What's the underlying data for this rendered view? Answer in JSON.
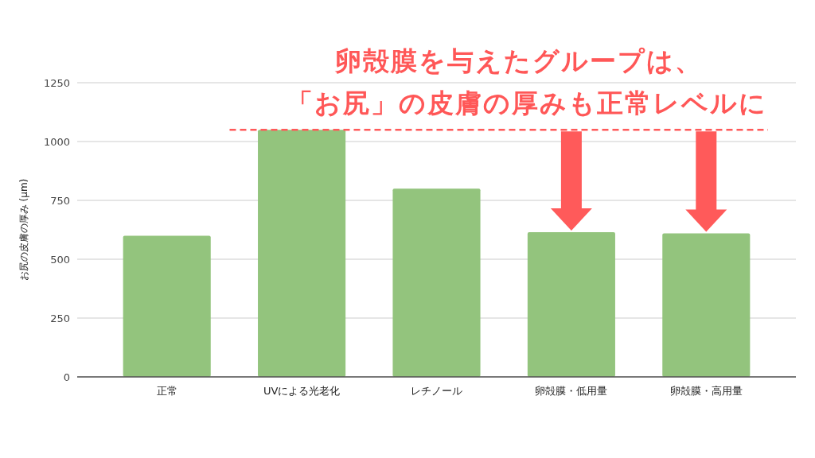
{
  "chart_data": {
    "type": "bar",
    "title": "卵殻膜を与えたグループは、",
    "subtitle": "「お尻」の皮膚の厚みも正常レベルに",
    "ylabel": "お尻の皮膚の厚み (μm)",
    "categories": [
      "正常",
      "UVによる光老化",
      "レチノール",
      "卵殻膜・低用量",
      "卵殻膜・高用量"
    ],
    "values": [
      600,
      1050,
      800,
      615,
      610
    ],
    "color": "#93c47d",
    "ylim": [
      0,
      1250
    ],
    "yticks": [
      0,
      250,
      500,
      750,
      1000,
      1250
    ],
    "grid": "y",
    "ref_lines": [
      {
        "axis": "y",
        "value": 1050,
        "color": "#ff5a5a",
        "line_style": "dashed"
      }
    ]
  }
}
